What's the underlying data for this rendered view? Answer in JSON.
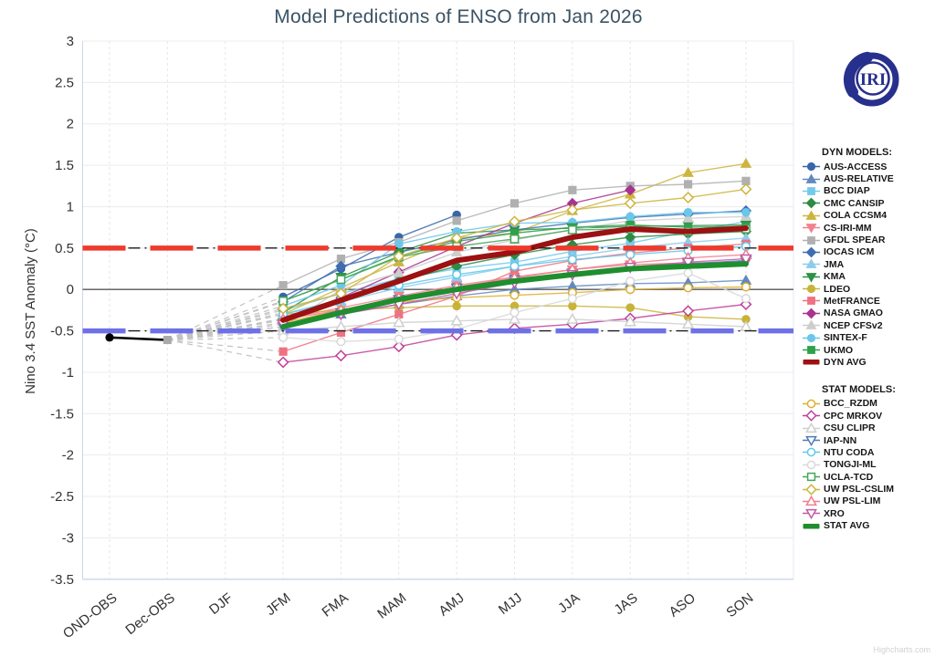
{
  "title": "Model Predictions of ENSO from Jan 2026",
  "ylabel": "Nino 3.4 SST Anomaly (°C)",
  "credits": "Highcharts.com",
  "logo_text": "IRI",
  "legend": {
    "dyn_header": "DYN MODELS:",
    "stat_header": "STAT MODELS:"
  },
  "chart_data": {
    "type": "line",
    "categories": [
      "OND-OBS",
      "Dec-OBS",
      "DJF",
      "JFM",
      "FMA",
      "MAM",
      "AMJ",
      "MJJ",
      "JJA",
      "JAS",
      "ASO",
      "SON"
    ],
    "ylim": [
      -3.5,
      3
    ],
    "y_ticks": [
      3,
      2.5,
      2,
      1.5,
      1,
      0.5,
      0,
      -0.5,
      -1,
      -1.5,
      -2,
      -2.5,
      -3,
      -3.5
    ],
    "grid": true,
    "legend_position": "right",
    "reference_lines": [
      {
        "name": "el-nino-threshold",
        "value": 0.5,
        "color": "#ee3a2c"
      },
      {
        "name": "la-nina-threshold",
        "value": -0.5,
        "color": "#6e71e6"
      }
    ],
    "observations": {
      "color": "#000000",
      "points": [
        {
          "category": "OND-OBS",
          "value": -0.58
        },
        {
          "category": "Dec-OBS",
          "value": -0.61
        }
      ]
    },
    "forecast_start_category": "JFM",
    "series": [
      {
        "name": "AUS-ACCESS",
        "group": "dyn",
        "color": "#3866a8",
        "marker": "circle",
        "open": false,
        "avg": false,
        "values": [
          -0.09,
          0.25,
          0.63,
          0.9
        ]
      },
      {
        "name": "AUS-RELATIVE",
        "group": "dyn",
        "color": "#6189be",
        "marker": "triangle",
        "open": false,
        "avg": false,
        "values": [
          -0.45,
          -0.3,
          -0.18,
          -0.08,
          0.0,
          0.04,
          0.07,
          0.08,
          0.11
        ]
      },
      {
        "name": "BCC DIAP",
        "group": "dyn",
        "color": "#74c9ec",
        "marker": "square",
        "open": false,
        "avg": false,
        "values": [
          -0.25,
          -0.05,
          0.13,
          0.25,
          0.33,
          0.46,
          0.56,
          0.7,
          0.82
        ]
      },
      {
        "name": "CMC CANSIP",
        "group": "dyn",
        "color": "#2e8b44",
        "marker": "diamond",
        "open": false,
        "avg": false,
        "values": [
          -0.35,
          -0.12,
          0.1,
          0.28,
          0.42,
          0.54,
          0.63,
          0.67,
          0.7
        ]
      },
      {
        "name": "COLA CCSM4",
        "group": "dyn",
        "color": "#ceb53f",
        "marker": "triangle",
        "open": false,
        "avg": false,
        "values": [
          -0.3,
          0.02,
          0.33,
          0.62,
          0.68,
          0.95,
          1.15,
          1.41,
          1.52
        ]
      },
      {
        "name": "CS-IRI-MM",
        "group": "dyn",
        "color": "#f4808d",
        "marker": "triangle-down",
        "open": false,
        "avg": false,
        "values": [
          -0.36,
          -0.22,
          -0.08,
          0.05,
          0.15,
          0.24,
          0.3,
          0.32,
          0.33
        ]
      },
      {
        "name": "GFDL SPEAR",
        "group": "dyn",
        "color": "#b0b0b0",
        "marker": "square",
        "open": false,
        "avg": false,
        "values": [
          0.05,
          0.37,
          0.57,
          0.83,
          1.04,
          1.2,
          1.25,
          1.27,
          1.31
        ]
      },
      {
        "name": "IOCAS ICM",
        "group": "dyn",
        "color": "#3e6eb0",
        "marker": "diamond",
        "open": false,
        "avg": false,
        "values": [
          -0.15,
          0.28,
          0.45,
          0.6,
          0.72,
          0.8,
          0.87,
          0.91,
          0.95
        ]
      },
      {
        "name": "JMA",
        "group": "dyn",
        "color": "#8cccec",
        "marker": "triangle",
        "open": false,
        "avg": false,
        "values": [
          -0.3,
          -0.15,
          0.02,
          0.15,
          0.28,
          0.4,
          0.5,
          0.57,
          0.62
        ]
      },
      {
        "name": "KMA",
        "group": "dyn",
        "color": "#2e9147",
        "marker": "triangle-down",
        "open": false,
        "avg": false,
        "values": [
          -0.28,
          0.15,
          0.45,
          0.68,
          0.72,
          0.74,
          0.76,
          0.77,
          0.78
        ]
      },
      {
        "name": "LDEO",
        "group": "dyn",
        "color": "#c8b339",
        "marker": "circle",
        "open": false,
        "avg": false,
        "values": [
          -0.3,
          -0.25,
          -0.22,
          -0.2,
          -0.2,
          -0.2,
          -0.22,
          -0.33,
          -0.36
        ]
      },
      {
        "name": "MetFRANCE",
        "group": "dyn",
        "color": "#ef7282",
        "marker": "square",
        "open": false,
        "avg": false,
        "values": [
          -0.75,
          -0.52,
          -0.3,
          -0.08,
          0.22,
          0.35,
          0.44,
          0.5,
          0.55
        ]
      },
      {
        "name": "NASA GMAO",
        "group": "dyn",
        "color": "#a83390",
        "marker": "diamond",
        "open": false,
        "avg": false,
        "values": [
          -0.4,
          -0.1,
          0.21,
          0.52,
          0.8,
          1.04,
          1.2
        ]
      },
      {
        "name": "NCEP CFSv2",
        "group": "dyn",
        "color": "#cdcdcd",
        "marker": "triangle",
        "open": false,
        "avg": false,
        "values": [
          -0.45,
          0.0,
          0.2,
          0.45,
          0.6,
          0.72,
          0.83,
          0.86,
          0.88
        ]
      },
      {
        "name": "SINTEX-F",
        "group": "dyn",
        "color": "#6bc6ea",
        "marker": "circle",
        "open": false,
        "avg": false,
        "values": [
          -0.2,
          0.05,
          0.55,
          0.7,
          0.8,
          0.81,
          0.88,
          0.93,
          0.93
        ]
      },
      {
        "name": "UKMO",
        "group": "dyn",
        "color": "#2fa04c",
        "marker": "square",
        "open": false,
        "avg": false,
        "values": [
          -0.14,
          0.12,
          0.4,
          0.58,
          0.68,
          0.75,
          0.78,
          0.75,
          0.76
        ]
      },
      {
        "name": "DYN AVG",
        "group": "dyn",
        "color": "#9c1111",
        "marker": "line",
        "open": false,
        "avg": true,
        "values": [
          -0.37,
          -0.13,
          0.1,
          0.35,
          0.45,
          0.63,
          0.73,
          0.7,
          0.74
        ]
      },
      {
        "name": "BCC_RZDM",
        "group": "stat",
        "color": "#ddaf2d",
        "marker": "circle",
        "open": true,
        "avg": false,
        "values": [
          -0.4,
          -0.25,
          -0.15,
          -0.1,
          -0.07,
          -0.04,
          0.0,
          0.02,
          0.03
        ]
      },
      {
        "name": "CPC MRKOV",
        "group": "stat",
        "color": "#c04099",
        "marker": "diamond",
        "open": true,
        "avg": false,
        "values": [
          -0.88,
          -0.8,
          -0.69,
          -0.55,
          -0.47,
          -0.42,
          -0.35,
          -0.26,
          -0.18
        ]
      },
      {
        "name": "CSU CLIPR",
        "group": "stat",
        "color": "#cfcfcf",
        "marker": "triangle",
        "open": true,
        "avg": false,
        "values": [
          -0.5,
          -0.45,
          -0.4,
          -0.38,
          -0.36,
          -0.36,
          -0.39,
          -0.42,
          -0.45
        ]
      },
      {
        "name": "IAP-NN",
        "group": "stat",
        "color": "#4f7cb8",
        "marker": "triangle-down",
        "open": true,
        "avg": false,
        "values": [
          -0.45,
          -0.28,
          -0.12,
          0.02,
          0.12,
          0.2,
          0.27,
          0.31,
          0.35
        ]
      },
      {
        "name": "NTU CODA",
        "group": "stat",
        "color": "#5fc9ea",
        "marker": "circle",
        "open": true,
        "avg": false,
        "values": [
          -0.3,
          -0.12,
          0.05,
          0.18,
          0.28,
          0.36,
          0.42,
          0.47,
          0.52
        ]
      },
      {
        "name": "TONGJI-ML",
        "group": "stat",
        "color": "#d8d8d8",
        "marker": "circle",
        "open": true,
        "avg": false,
        "values": [
          -0.58,
          -0.63,
          -0.6,
          -0.48,
          -0.28,
          -0.11,
          0.1,
          0.2,
          -0.11
        ]
      },
      {
        "name": "UCLA-TCD",
        "group": "stat",
        "color": "#46a65a",
        "marker": "square",
        "open": true,
        "avg": false,
        "values": [
          -0.14,
          0.12,
          0.39,
          0.52,
          0.61,
          0.72,
          0.73,
          0.7,
          0.73
        ]
      },
      {
        "name": "UW PSL-CSLIM",
        "group": "stat",
        "color": "#cdb53c",
        "marker": "diamond",
        "open": true,
        "avg": false,
        "values": [
          -0.23,
          -0.05,
          0.4,
          0.62,
          0.82,
          0.96,
          1.04,
          1.11,
          1.21
        ]
      },
      {
        "name": "UW PSL-LIM",
        "group": "stat",
        "color": "#f27d8a",
        "marker": "triangle",
        "open": true,
        "avg": false,
        "values": [
          -0.36,
          -0.25,
          -0.1,
          0.03,
          0.14,
          0.24,
          0.32,
          0.38,
          0.42
        ]
      },
      {
        "name": "XRO",
        "group": "stat",
        "color": "#c45aa4",
        "marker": "triangle-down",
        "open": true,
        "avg": false,
        "values": [
          -0.42,
          -0.3,
          -0.18,
          -0.05,
          0.08,
          0.18,
          0.27,
          0.33,
          0.37
        ]
      },
      {
        "name": "STAT AVG",
        "group": "stat",
        "color": "#1e8e2e",
        "marker": "line",
        "open": false,
        "avg": true,
        "values": [
          -0.45,
          -0.28,
          -0.12,
          0.0,
          0.1,
          0.18,
          0.25,
          0.28,
          0.31
        ]
      }
    ]
  }
}
